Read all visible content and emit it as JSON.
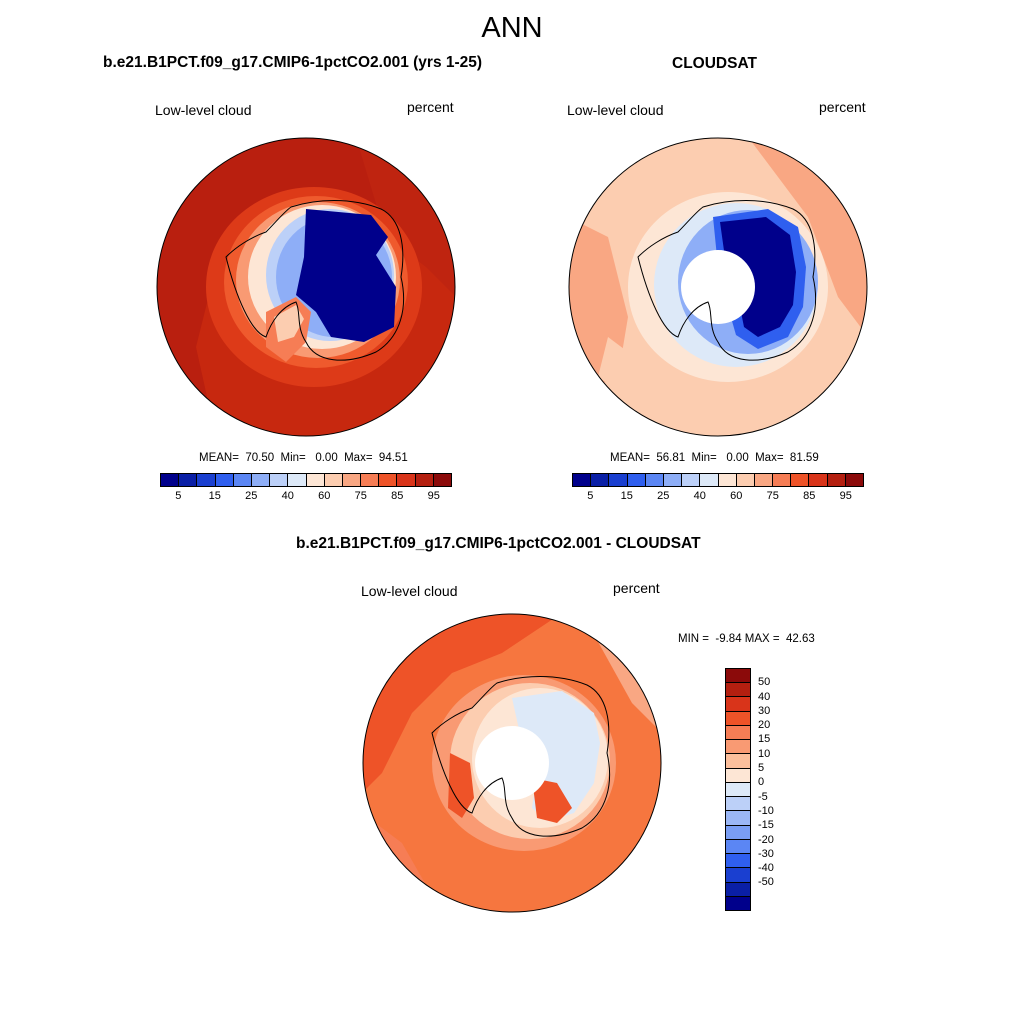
{
  "main_title": "ANN",
  "panels": [
    {
      "title": "b.e21.B1PCT.f09_g17.CMIP6-1pctCO2.001 (yrs 1-25)",
      "variable": "Low-level cloud",
      "units": "percent",
      "stats": "MEAN=  70.50  Min=   0.00  Max=  94.51"
    },
    {
      "title": "CLOUDSAT",
      "variable": "Low-level cloud",
      "units": "percent",
      "stats": "MEAN=  56.81  Min=   0.00  Max=  81.59"
    },
    {
      "title": "b.e21.B1PCT.f09_g17.CMIP6-1pctCO2.001 - CLOUDSAT",
      "variable": "Low-level cloud",
      "units": "percent",
      "stats": "MIN =  -9.84 MAX =  42.63"
    }
  ],
  "abs_colorbar": {
    "colors": [
      "#00008b",
      "#0a1fa6",
      "#1a3fd0",
      "#2f5fef",
      "#5b86f4",
      "#8eaef7",
      "#bcd0f8",
      "#dde9f8",
      "#fde6d5",
      "#fccdb0",
      "#f9a783",
      "#f67d55",
      "#ee5328",
      "#d9341a",
      "#b41f10",
      "#8b0a0a"
    ],
    "labels": [
      "5",
      "15",
      "25",
      "40",
      "60",
      "75",
      "85",
      "95"
    ]
  },
  "diff_colorbar": {
    "colors": [
      "#8b0a0a",
      "#b41f10",
      "#d9341a",
      "#ee5328",
      "#f67d55",
      "#f99a73",
      "#fcbf9c",
      "#fde6d5",
      "#dde9f8",
      "#bcd0f8",
      "#9bb7f6",
      "#7a9ef4",
      "#5b86f4",
      "#2f5fef",
      "#1a3fd0",
      "#0a1fa6",
      "#00008b"
    ],
    "labels": [
      "50",
      "40",
      "30",
      "20",
      "15",
      "10",
      "5",
      "0",
      "-5",
      "-10",
      "-15",
      "-20",
      "-30",
      "-40",
      "-50"
    ]
  }
}
